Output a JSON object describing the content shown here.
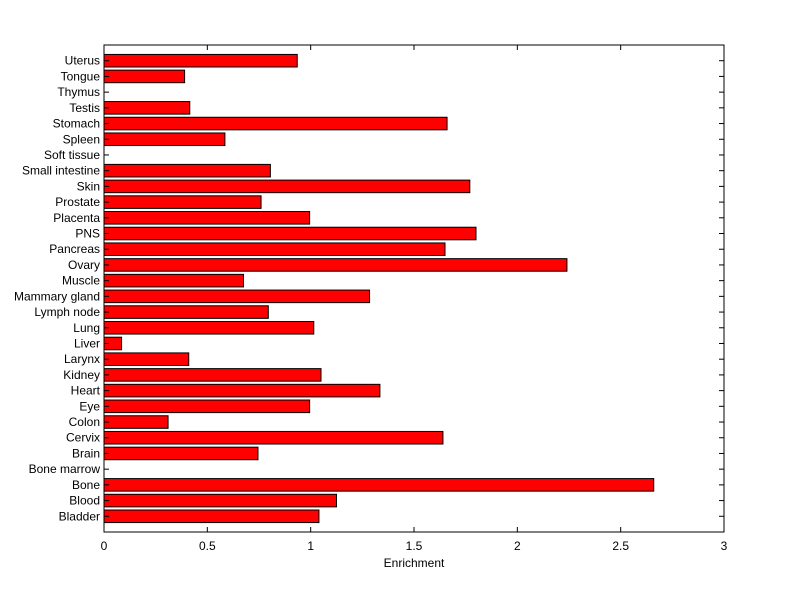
{
  "chart_data": {
    "type": "bar",
    "orientation": "horizontal",
    "title": "",
    "xlabel": "Enrichment",
    "ylabel": "",
    "xlim": [
      0,
      3
    ],
    "xticks": [
      0,
      0.5,
      1,
      1.5,
      2,
      2.5,
      3
    ],
    "xtick_labels": [
      "0",
      "0.5",
      "1",
      "1.5",
      "2",
      "2.5",
      "3"
    ],
    "grid": false,
    "legend": "none",
    "bar_color": "#ff0000",
    "categories": [
      "Bladder",
      "Blood",
      "Bone",
      "Bone marrow",
      "Brain",
      "Cervix",
      "Colon",
      "Eye",
      "Heart",
      "Kidney",
      "Larynx",
      "Liver",
      "Lung",
      "Lymph node",
      "Mammary gland",
      "Muscle",
      "Ovary",
      "Pancreas",
      "PNS",
      "Placenta",
      "Prostate",
      "Skin",
      "Small intestine",
      "Soft tissue",
      "Spleen",
      "Stomach",
      "Testis",
      "Thymus",
      "Tongue",
      "Uterus"
    ],
    "values": [
      1.04,
      1.125,
      2.66,
      0,
      0.745,
      1.64,
      0.31,
      0.995,
      1.335,
      1.05,
      0.41,
      0.085,
      1.015,
      0.795,
      1.285,
      0.675,
      2.24,
      1.65,
      1.8,
      0.995,
      0.76,
      1.77,
      0.805,
      0,
      0.585,
      1.66,
      0.415,
      0,
      0.39,
      0.935
    ]
  }
}
